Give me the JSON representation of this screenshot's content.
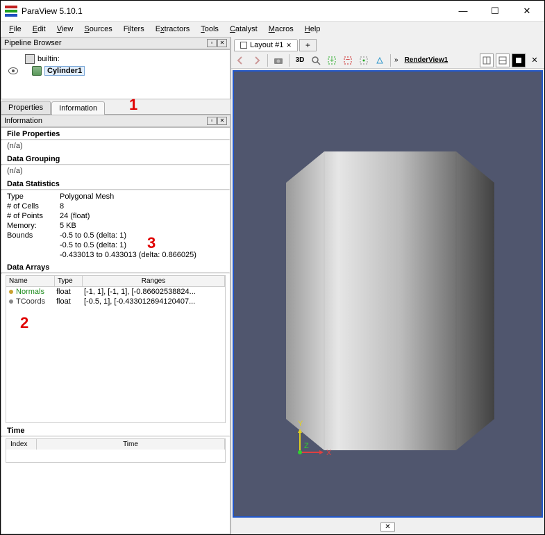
{
  "window": {
    "title": "ParaView 5.10.1",
    "icon_colors": [
      "#c02020",
      "#20a020",
      "#2050c0"
    ]
  },
  "menus": [
    "File",
    "Edit",
    "View",
    "Sources",
    "Filters",
    "Extractors",
    "Tools",
    "Catalyst",
    "Macros",
    "Help"
  ],
  "pipeline": {
    "header": "Pipeline Browser",
    "server_label": "builtin:",
    "item_label": "Cylinder1"
  },
  "tabs": {
    "properties": "Properties",
    "information": "Information"
  },
  "info_header": "Information",
  "sections": {
    "file_properties": "File Properties",
    "file_properties_value": "(n/a)",
    "data_grouping": "Data Grouping",
    "data_grouping_value": "(n/a)",
    "data_statistics": "Data Statistics",
    "data_arrays": "Data Arrays",
    "time": "Time"
  },
  "stats": {
    "type_label": "Type",
    "type_value": "Polygonal Mesh",
    "cells_label": "# of Cells",
    "cells_value": "8",
    "points_label": "# of Points",
    "points_value": "24 (float)",
    "memory_label": "Memory:",
    "memory_value": "5 KB",
    "bounds_label": "Bounds",
    "bounds_1": "-0.5 to 0.5 (delta: 1)",
    "bounds_2": "-0.5 to 0.5 (delta: 1)",
    "bounds_3": "-0.433013 to 0.433013 (delta: 0.866025)"
  },
  "arrays": {
    "col_name": "Name",
    "col_type": "Type",
    "col_ranges": "Ranges",
    "rows": [
      {
        "color": "#c9a030",
        "name": "Normals",
        "name_color": "#1a8a1a",
        "type": "float",
        "ranges": "[-1, 1], [-1, 1], [-0.86602538824..."
      },
      {
        "color": "#888888",
        "name": "TCoords",
        "name_color": "#333",
        "type": "float",
        "ranges": "[-0.5, 1], [-0.433012694120407..."
      }
    ]
  },
  "time_cols": {
    "index": "Index",
    "time": "Time"
  },
  "annotations": {
    "a1": "1",
    "a2": "2",
    "a3": "3"
  },
  "layout": {
    "tab_label": "Layout #1",
    "close_glyph": "✕",
    "plus": "+"
  },
  "render_toolbar": {
    "mode_3d": "3D",
    "view_label": "RenderView1"
  },
  "axes": {
    "x": "X",
    "y": "Y",
    "z": "Z",
    "x_color": "#e04040",
    "y_color": "#e0d020",
    "z_color": "#30d030"
  },
  "viewport_bg": "#50566e",
  "cylinder_colors": {
    "light": "#e8e8e8",
    "mid": "#b8b8b8",
    "dark": "#505050"
  }
}
